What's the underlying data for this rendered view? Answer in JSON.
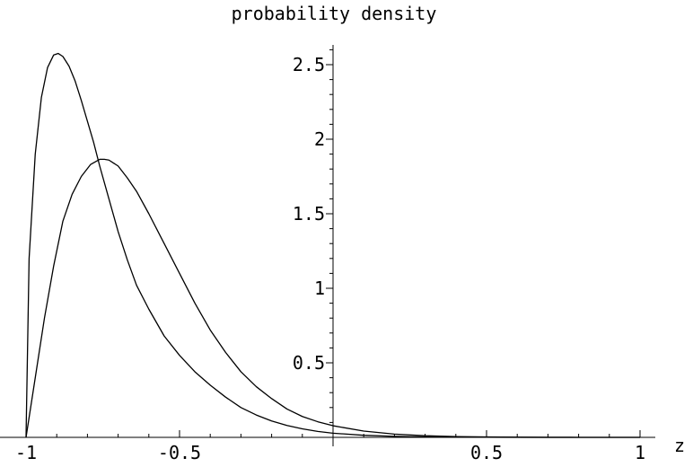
{
  "chart_data": {
    "type": "line",
    "title": "probability density",
    "xlabel": "z",
    "ylabel": "",
    "xlim": [
      -1,
      1
    ],
    "ylim": [
      0,
      2.6
    ],
    "grid": false,
    "x_ticks": [
      {
        "value": -1,
        "label": "-1"
      },
      {
        "value": -0.5,
        "label": "-0.5"
      },
      {
        "value": 0.5,
        "label": "0.5"
      },
      {
        "value": 1,
        "label": "1"
      }
    ],
    "y_ticks": [
      {
        "value": 0.5,
        "label": "0.5"
      },
      {
        "value": 1,
        "label": "1"
      },
      {
        "value": 1.5,
        "label": "1.5"
      },
      {
        "value": 2,
        "label": "2"
      },
      {
        "value": 2.5,
        "label": "2.5"
      }
    ],
    "series": [
      {
        "color": "#000000",
        "x": [
          -1,
          -0.99,
          -0.97,
          -0.95,
          -0.93,
          -0.91,
          -0.895,
          -0.88,
          -0.86,
          -0.84,
          -0.82,
          -0.8,
          -0.78,
          -0.76,
          -0.73,
          -0.7,
          -0.67,
          -0.64,
          -0.6,
          -0.55,
          -0.5,
          -0.45,
          -0.4,
          -0.35,
          -0.3,
          -0.25,
          -0.2,
          -0.15,
          -0.1,
          -0.05,
          0,
          0.1,
          0.2,
          0.3,
          0.4,
          0.5,
          0.6,
          0.7,
          0.8,
          0.9,
          1
        ],
        "y": [
          0,
          1.2,
          1.9,
          2.28,
          2.48,
          2.565,
          2.575,
          2.555,
          2.49,
          2.39,
          2.26,
          2.12,
          1.98,
          1.82,
          1.6,
          1.38,
          1.19,
          1.02,
          0.86,
          0.68,
          0.55,
          0.44,
          0.35,
          0.27,
          0.2,
          0.15,
          0.11,
          0.08,
          0.057,
          0.04,
          0.028,
          0.014,
          0.007,
          0.003,
          0.0015,
          0.0006,
          0.0003,
          0.0001,
          5e-05,
          2e-05,
          0
        ]
      },
      {
        "color": "#000000",
        "x": [
          -1,
          -0.97,
          -0.94,
          -0.91,
          -0.88,
          -0.85,
          -0.82,
          -0.79,
          -0.76,
          -0.745,
          -0.73,
          -0.7,
          -0.67,
          -0.64,
          -0.6,
          -0.55,
          -0.5,
          -0.45,
          -0.4,
          -0.35,
          -0.3,
          -0.25,
          -0.2,
          -0.15,
          -0.1,
          -0.05,
          0,
          0.1,
          0.2,
          0.3,
          0.4,
          0.5,
          0.6,
          0.7,
          0.8,
          0.9,
          1
        ],
        "y": [
          0,
          0.4,
          0.8,
          1.15,
          1.45,
          1.63,
          1.75,
          1.83,
          1.865,
          1.865,
          1.86,
          1.82,
          1.74,
          1.65,
          1.5,
          1.3,
          1.1,
          0.9,
          0.72,
          0.57,
          0.44,
          0.34,
          0.26,
          0.19,
          0.14,
          0.105,
          0.078,
          0.042,
          0.022,
          0.011,
          0.005,
          0.0025,
          0.0011,
          0.0005,
          0.0002,
          8e-05,
          0
        ]
      }
    ]
  }
}
